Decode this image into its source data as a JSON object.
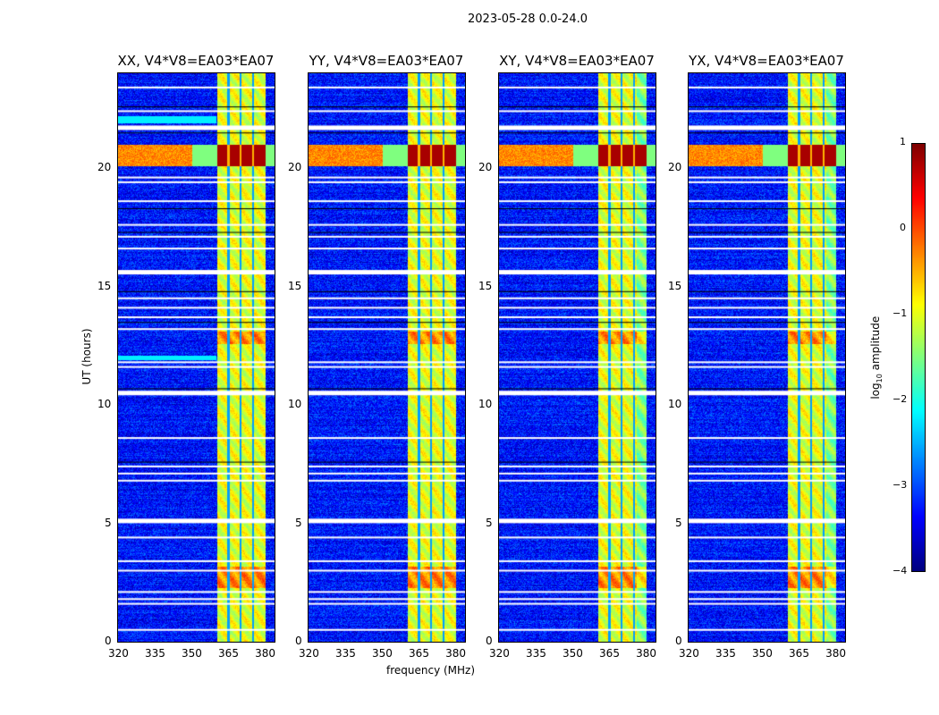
{
  "chart_data": {
    "type": "heatmap",
    "title": "2023-05-28 0.0-24.0",
    "xlabel": "frequency (MHz)",
    "ylabel": "UT (hours)",
    "xlim": [
      320,
      384
    ],
    "ylim": [
      0,
      24
    ],
    "xticks": [
      "320",
      "335",
      "350",
      "365",
      "380"
    ],
    "xtick_values": [
      320,
      335,
      350,
      365,
      380
    ],
    "yticks": [
      "0",
      "5",
      "10",
      "15",
      "20"
    ],
    "ytick_values": [
      0,
      5,
      10,
      15,
      20
    ],
    "panels": [
      {
        "title": "XX, V4*V8=EA03*EA07"
      },
      {
        "title": "YY, V4*V8=EA03*EA07"
      },
      {
        "title": "XY, V4*V8=EA03*EA07"
      },
      {
        "title": "YX, V4*V8=EA03*EA07"
      }
    ],
    "rfi_band_mhz": [
      360.5,
      380
    ],
    "strong_rfi_hours": [
      20.1,
      21.0
    ],
    "flagged_hours_white": [
      0.5,
      1.6,
      1.8,
      2.1,
      3.0,
      3.4,
      4.4,
      5.1,
      6.8,
      7.1,
      7.4,
      8.6,
      10.5,
      11.6,
      11.8,
      13.2,
      13.7,
      14.1,
      14.5,
      15.6,
      16.6,
      17.1,
      17.6,
      18.6,
      19.4,
      19.6,
      21.7,
      22.4,
      23.4
    ],
    "flagged_hours_black": [
      7.6,
      10.7,
      13.5,
      14.8,
      17.3,
      18.3,
      21.5,
      22.6
    ],
    "colorbar": {
      "label": "log10 amplitude",
      "colormap": "jet",
      "range": [
        -4,
        1
      ],
      "ticks": [
        "1",
        "0",
        "−1",
        "−2",
        "−3",
        "−4"
      ],
      "tick_values": [
        1,
        0,
        -1,
        -2,
        -3,
        -4
      ]
    }
  }
}
